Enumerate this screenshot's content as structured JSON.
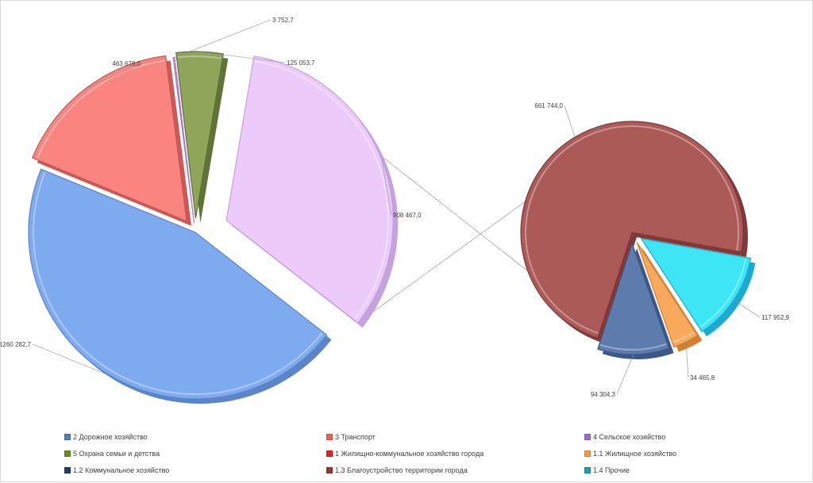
{
  "chart_data": {
    "type": "pie",
    "subtype": "bar-of-pie (pie of pie), exploded, 3D",
    "main_pie": {
      "slices": [
        {
          "name": "2 Дорожное хозяйство",
          "value": 1260282.7,
          "label": "1260 282,7",
          "color": "#7eaaf0",
          "side": "#5d84c6"
        },
        {
          "name": "3 Транспорт",
          "value": 463678.0,
          "label": "463 678,0",
          "color": "#f98480",
          "side": "#c95955"
        },
        {
          "name": "4 Сельское хозяйство",
          "value": 3752.7,
          "label": "3 752,7",
          "color": "#d3a0ea",
          "side": "#a678c4"
        },
        {
          "name": "5 Охрана семьи и детства",
          "value": 125053.7,
          "label": "125 053,7",
          "color": "#8fa55a",
          "side": "#5f7238"
        },
        {
          "name": "1 Жилищно-коммунальное  хозяйство города",
          "value": 908467.0,
          "label": "908 467,0",
          "color": "#eccbfb",
          "side": "#c4a2de"
        }
      ]
    },
    "secondary_pie": {
      "slices": [
        {
          "name": "1.3 Благоустройство территории города",
          "value": 661744.0,
          "label": "661 744,0",
          "color": "#ab5a58",
          "side": "#7d3a38"
        },
        {
          "name": "1.4 Прочие",
          "value": 117952.9,
          "label": "117 952,9",
          "color": "#3ee6f5",
          "side": "#1fa8d0"
        },
        {
          "name": "1.1 Жилищное хозяйство",
          "value": 34465.8,
          "label": "34 465,8",
          "color": "#f9a95c",
          "side": "#d37e32"
        },
        {
          "name": "1.2 Коммунальное хозяйство",
          "value": 94304.3,
          "label": "94 304,3",
          "color": "#5d7bad",
          "side": "#3d5886"
        }
      ]
    },
    "legend": {
      "position": "bottom",
      "entries": [
        {
          "label": "2 Дорожное хозяйство",
          "color": "#4f81bd"
        },
        {
          "label": "3 Транспорт",
          "color": "#e0655f"
        },
        {
          "label": "4 Сельское хозяйство",
          "color": "#9b6ad1"
        },
        {
          "label": "5 Охрана семьи и детства",
          "color": "#6b8e23"
        },
        {
          "label": "1 Жилищно-коммунальное  хозяйство города",
          "color": "#e82020"
        },
        {
          "label": "1.1 Жилищное хозяйство",
          "color": "#f79646"
        },
        {
          "label": "1.2 Коммунальное хозяйство",
          "color": "#1f3e6e"
        },
        {
          "label": "1.3 Благоустройство территории города",
          "color": "#953735"
        },
        {
          "label": "1.4 Прочие",
          "color": "#17a2b8"
        }
      ]
    }
  }
}
